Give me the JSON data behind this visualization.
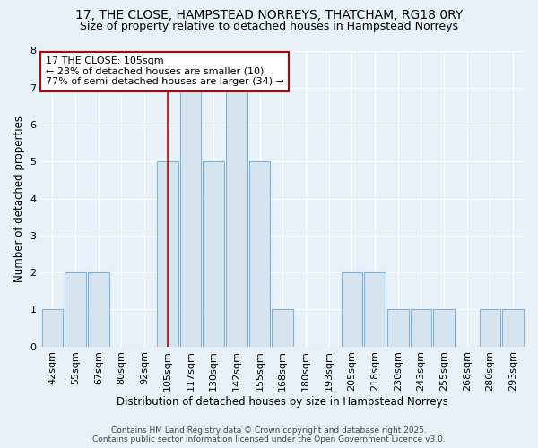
{
  "title1": "17, THE CLOSE, HAMPSTEAD NORREYS, THATCHAM, RG18 0RY",
  "title2": "Size of property relative to detached houses in Hampstead Norreys",
  "xlabel": "Distribution of detached houses by size in Hampstead Norreys",
  "ylabel": "Number of detached properties",
  "categories": [
    "42sqm",
    "55sqm",
    "67sqm",
    "80sqm",
    "92sqm",
    "105sqm",
    "117sqm",
    "130sqm",
    "142sqm",
    "155sqm",
    "168sqm",
    "180sqm",
    "193sqm",
    "205sqm",
    "218sqm",
    "230sqm",
    "243sqm",
    "255sqm",
    "268sqm",
    "280sqm",
    "293sqm"
  ],
  "values": [
    1,
    2,
    2,
    0,
    0,
    5,
    7,
    5,
    7,
    5,
    1,
    0,
    0,
    2,
    2,
    1,
    1,
    1,
    0,
    1,
    1
  ],
  "highlight_index": 5,
  "bar_color": "#d6e4f0",
  "bar_edge_color": "#7fb3d6",
  "highlight_line_color": "#c00000",
  "ylim": [
    0,
    8
  ],
  "yticks": [
    0,
    1,
    2,
    3,
    4,
    5,
    6,
    7,
    8
  ],
  "annotation_text": "17 THE CLOSE: 105sqm\n← 23% of detached houses are smaller (10)\n77% of semi-detached houses are larger (34) →",
  "annotation_box_color": "#ffffff",
  "annotation_box_edge": "#c00000",
  "footer1": "Contains HM Land Registry data © Crown copyright and database right 2025.",
  "footer2": "Contains public sector information licensed under the Open Government Licence v3.0.",
  "bg_color": "#e8f0f8",
  "title1_fontsize": 10,
  "title2_fontsize": 9,
  "axis_fontsize": 8.5,
  "tick_fontsize": 8,
  "annotation_fontsize": 8,
  "footer_fontsize": 6.5
}
